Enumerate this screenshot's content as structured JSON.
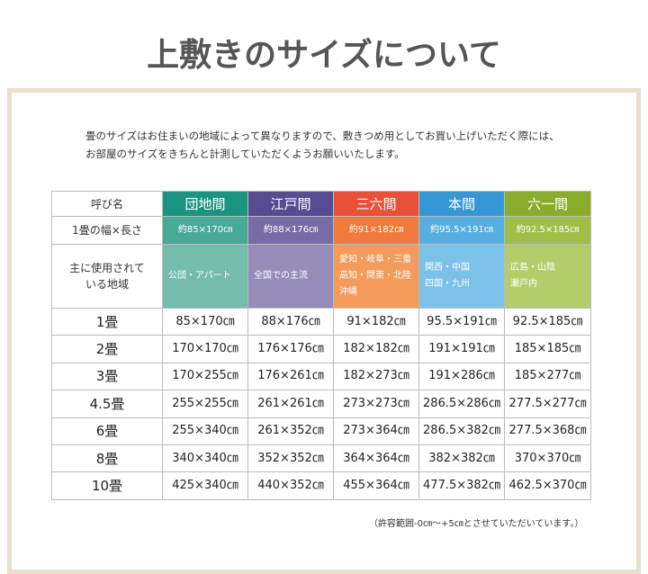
{
  "header": {
    "title": "上敷きのサイズについて"
  },
  "intro": [
    "畳のサイズはお住まいの地域によって異なりますので、敷きつめ用としてお買い上げいただく際には、",
    "お部屋のサイズをきちんと計測していただくようお願いいたします。"
  ],
  "table": {
    "corner": "呼び名",
    "columns": [
      "団地間",
      "江戸間",
      "三六間",
      "本間",
      "六一間"
    ],
    "size_label": "1畳の幅×長さ",
    "sizes": [
      "約85×170㎝",
      "約88×176㎝",
      "約91×182㎝",
      "約95.5×191㎝",
      "約92.5×185㎝"
    ],
    "region_label": [
      "主に使用されて",
      "いる地域"
    ],
    "regions": [
      [
        "公団・アパート"
      ],
      [
        "全国での主流"
      ],
      [
        "愛知・岐阜・三重",
        "高知・関東・北陸",
        "沖縄"
      ],
      [
        "関西・中国",
        "四国・九州"
      ],
      [
        "広島・山陰",
        "瀬戸内"
      ]
    ],
    "rows": [
      [
        "1畳",
        "85×170㎝",
        "88×176㎝",
        "91×182㎝",
        "95.5×191㎝",
        "92.5×185㎝"
      ],
      [
        "2畳",
        "170×170㎝",
        "176×176㎝",
        "182×182㎝",
        "191×191㎝",
        "185×185㎝"
      ],
      [
        "3畳",
        "170×255㎝",
        "176×261㎝",
        "182×273㎝",
        "191×286㎝",
        "185×277㎝"
      ],
      [
        "4.5畳",
        "255×255㎝",
        "261×261㎝",
        "273×273㎝",
        "286.5×286㎝",
        "277.5×277㎝"
      ],
      [
        "6畳",
        "255×340㎝",
        "261×352㎝",
        "273×364㎝",
        "286.5×382㎝",
        "277.5×368㎝"
      ],
      [
        "8畳",
        "340×340㎝",
        "352×352㎝",
        "364×364㎝",
        "382×382㎝",
        "370×370㎝"
      ],
      [
        "10畳",
        "425×340㎝",
        "440×352㎝",
        "455×364㎝",
        "477.5×382㎝",
        "462.5×370㎝"
      ]
    ]
  },
  "note": "（許容範囲-0㎝～+5㎝とさせていただいています。）"
}
